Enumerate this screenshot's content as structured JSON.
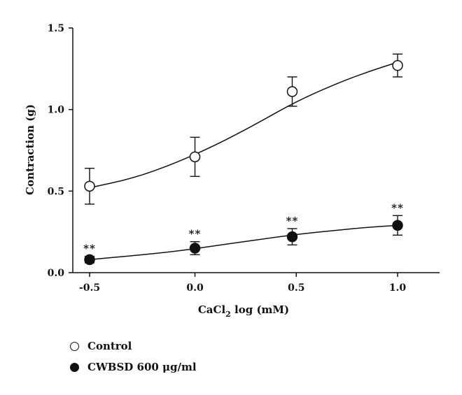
{
  "chart_data": {
    "type": "line",
    "xlabel": "CaCl",
    "xlabel_subscript": "2",
    "xlabel_suffix": " log (mM)",
    "ylabel": "Contraction (g)",
    "xlim": [
      -0.6,
      1.2
    ],
    "ylim": [
      0.0,
      1.5
    ],
    "xticks": [
      -0.5,
      0.0,
      0.5,
      1.0
    ],
    "xtick_labels": [
      "-0.5",
      "0.0",
      "0.5",
      "1.0"
    ],
    "yticks": [
      0.0,
      0.5,
      1.0,
      1.5
    ],
    "ytick_labels": [
      "0.0",
      "0.5",
      "1.0",
      "1.5"
    ],
    "grid": false,
    "legend_position": "bottom-left",
    "series": [
      {
        "name": "Control",
        "marker": "open-circle",
        "color": "#111111",
        "x": [
          -0.52,
          0.0,
          0.48,
          1.0
        ],
        "y": [
          0.53,
          0.71,
          1.11,
          1.27
        ],
        "err": [
          0.11,
          0.12,
          0.09,
          0.07
        ],
        "fit": [
          [
            -0.52,
            0.52
          ],
          [
            -0.3,
            0.58
          ],
          [
            -0.1,
            0.67
          ],
          [
            0.1,
            0.78
          ],
          [
            0.3,
            0.91
          ],
          [
            0.5,
            1.05
          ],
          [
            0.7,
            1.16
          ],
          [
            0.85,
            1.23
          ],
          [
            1.0,
            1.29
          ]
        ]
      },
      {
        "name": "CWBSD 600 μg/ml",
        "marker": "filled-circle",
        "color": "#111111",
        "x": [
          -0.52,
          0.0,
          0.48,
          1.0
        ],
        "y": [
          0.08,
          0.15,
          0.22,
          0.29
        ],
        "err": [
          0.02,
          0.04,
          0.05,
          0.06
        ],
        "significance": [
          "**",
          "**",
          "**",
          "**"
        ],
        "fit": [
          [
            -0.52,
            0.08
          ],
          [
            -0.3,
            0.105
          ],
          [
            -0.1,
            0.13
          ],
          [
            0.1,
            0.165
          ],
          [
            0.3,
            0.2
          ],
          [
            0.5,
            0.235
          ],
          [
            0.7,
            0.26
          ],
          [
            0.85,
            0.278
          ],
          [
            1.0,
            0.29
          ]
        ]
      }
    ]
  },
  "legend": {
    "items": [
      {
        "label": "Control",
        "marker": "open"
      },
      {
        "label": "CWBSD 600 μg/ml",
        "marker": "filled"
      }
    ]
  }
}
